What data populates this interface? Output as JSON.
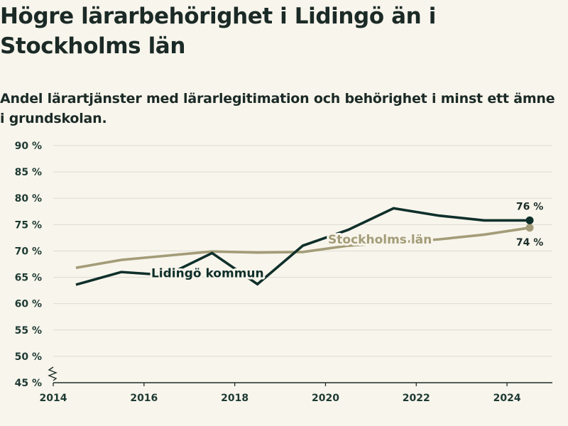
{
  "title": "Högre lärarbehörighet i Lidingö än i Stockholms län",
  "subtitle": "Andel lärartjänster med lärarlegitimation och behörighet i minst ett ämne i grundskolan.",
  "colors": {
    "lidingo": "#0f2f2a",
    "stockholm": "#a39c78",
    "grid": "#dedbd2",
    "axis": "#1d2e29"
  },
  "chart_data": {
    "type": "line",
    "x": [
      2014.5,
      2015.5,
      2016.5,
      2017.5,
      2018.5,
      2019.5,
      2020.5,
      2021.5,
      2022.5,
      2023.5,
      2024.5
    ],
    "series": [
      {
        "name": "Lidingö kommun",
        "values": [
          63.6,
          66.0,
          65.4,
          69.6,
          63.7,
          71.0,
          74.0,
          78.1,
          76.7,
          75.8,
          75.8
        ],
        "end_label": "76 %"
      },
      {
        "name": "Stockholms län",
        "values": [
          66.8,
          68.3,
          69.1,
          69.9,
          69.7,
          69.8,
          71.0,
          71.6,
          72.2,
          73.1,
          74.4
        ],
        "end_label": "74 %"
      }
    ],
    "xlim": [
      2014,
      2025
    ],
    "ylim": [
      45,
      90
    ],
    "y_break": true,
    "xticks": [
      2014,
      2016,
      2018,
      2020,
      2022,
      2024
    ],
    "xtick_labels": [
      "2014",
      "2016",
      "2018",
      "2020",
      "2022",
      "2024"
    ],
    "yticks": [
      45,
      50,
      55,
      60,
      65,
      70,
      75,
      80,
      85,
      90
    ],
    "ytick_labels": [
      "45 %",
      "50 %",
      "55 %",
      "60 %",
      "65 %",
      "70 %",
      "75 %",
      "80 %",
      "85 %",
      "90 %"
    ],
    "grid": true
  }
}
